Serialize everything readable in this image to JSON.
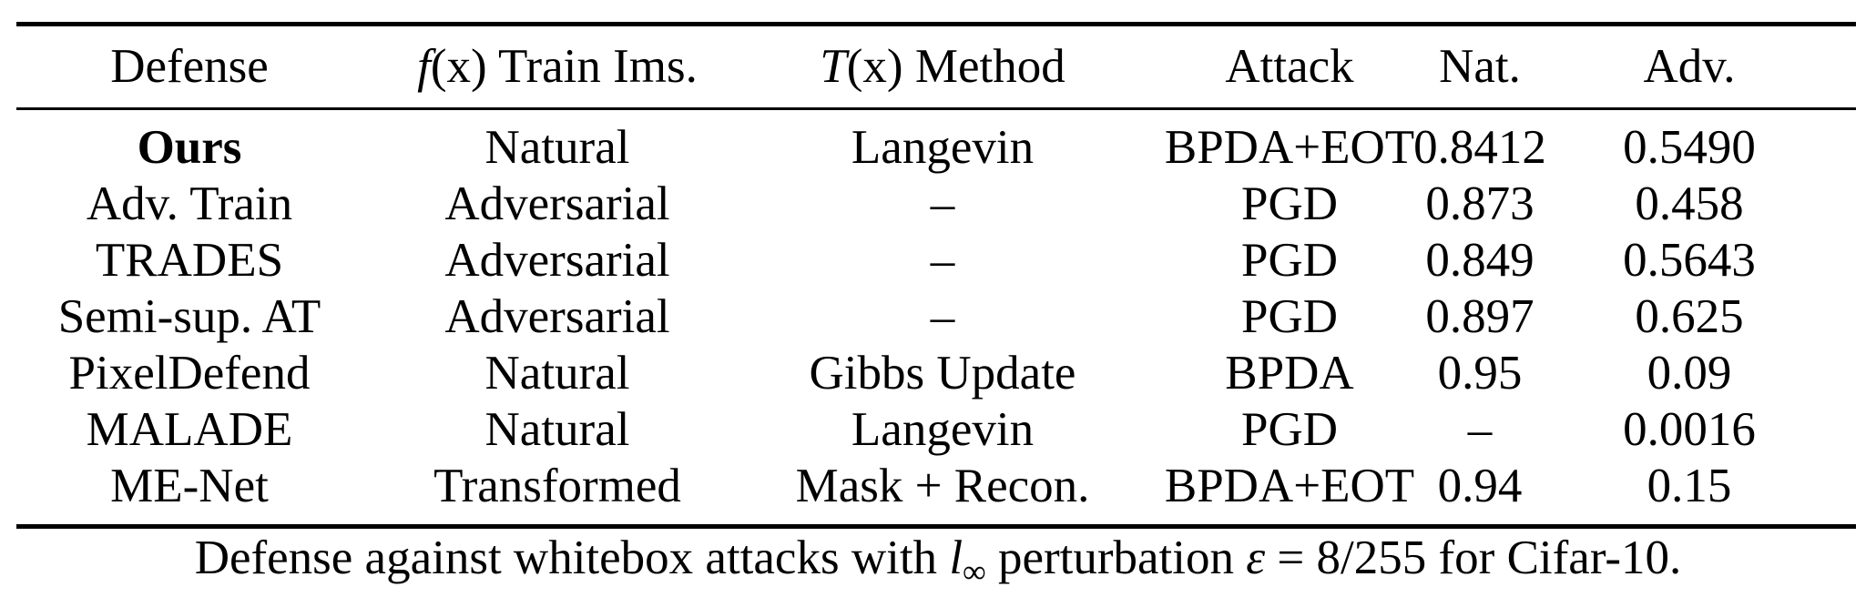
{
  "table": {
    "headers": {
      "defense": "Defense",
      "train_fx": "f",
      "train_x": "(x)",
      "train_label": " Train Ims.",
      "method_tx": "T",
      "method_x": "(x)",
      "method_label": " Method",
      "attack": "Attack",
      "nat": "Nat.",
      "adv": "Adv."
    },
    "rows": [
      {
        "defense": "Ours",
        "train": "Natural",
        "method": "Langevin",
        "attack": "BPDA+EOT",
        "nat": "0.8412",
        "adv": "0.5490"
      },
      {
        "defense": "Adv. Train",
        "train": "Adversarial",
        "method": "–",
        "attack": "PGD",
        "nat": "0.873",
        "adv": "0.458"
      },
      {
        "defense": "TRADES",
        "train": "Adversarial",
        "method": "–",
        "attack": "PGD",
        "nat": "0.849",
        "adv": "0.5643"
      },
      {
        "defense": "Semi-sup. AT",
        "train": "Adversarial",
        "method": "–",
        "attack": "PGD",
        "nat": "0.897",
        "adv": "0.625"
      },
      {
        "defense": "PixelDefend",
        "train": "Natural",
        "method": "Gibbs Update",
        "attack": "BPDA",
        "nat": "0.95",
        "adv": "0.09"
      },
      {
        "defense": "MALADE",
        "train": "Natural",
        "method": "Langevin",
        "attack": "PGD",
        "nat": "–",
        "adv": "0.0016"
      },
      {
        "defense": "ME-Net",
        "train": "Transformed",
        "method": "Mask + Recon.",
        "attack": "BPDA+EOT",
        "nat": "0.94",
        "adv": "0.15"
      }
    ]
  },
  "caption": {
    "part1": "Defense against whitebox attacks with ",
    "l": "l",
    "inf": "∞",
    "part2": " perturbation ",
    "eps": "ε",
    "eq": " = 8/255",
    "part3": " for Cifar-10."
  }
}
